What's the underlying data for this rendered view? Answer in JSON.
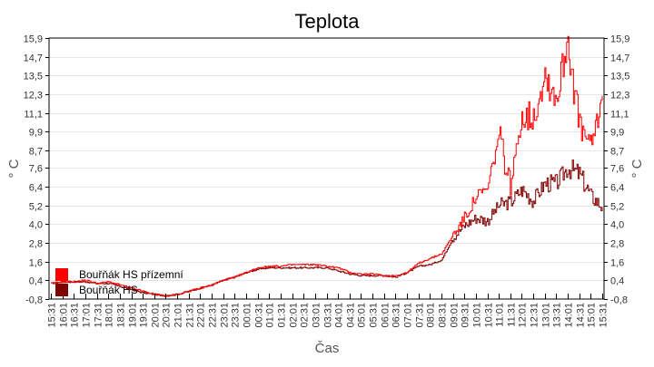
{
  "chart_data": {
    "type": "line",
    "title": "Teplota",
    "xlabel": "Čas",
    "ylabel": "° C",
    "ylabel_right": "° C",
    "ylim": [
      -0.8,
      15.9
    ],
    "yticks": [
      "-0,8",
      "0,4",
      "1,6",
      "2,8",
      "4,0",
      "5,2",
      "6,4",
      "7,6",
      "8,7",
      "9,9",
      "11,1",
      "12,3",
      "13,5",
      "14,7",
      "15,9"
    ],
    "ytick_values": [
      -0.8,
      0.4,
      1.6,
      2.8,
      4.0,
      5.2,
      6.4,
      7.6,
      8.7,
      9.9,
      11.1,
      12.3,
      13.5,
      14.7,
      15.9
    ],
    "grid": "horizontal",
    "legend_position": "lower-left inside",
    "categories": [
      "15:31",
      "16:01",
      "16:31",
      "17:01",
      "17:31",
      "18:01",
      "18:31",
      "19:01",
      "19:31",
      "20:01",
      "20:31",
      "21:01",
      "21:31",
      "22:01",
      "22:31",
      "23:01",
      "23:31",
      "00:01",
      "00:31",
      "01:01",
      "01:31",
      "02:01",
      "02:31",
      "03:01",
      "03:31",
      "04:01",
      "04:31",
      "05:01",
      "05:31",
      "06:01",
      "06:31",
      "07:01",
      "07:31",
      "08:01",
      "08:31",
      "09:01",
      "09:31",
      "10:01",
      "10:31",
      "11:01",
      "11:31",
      "12:01",
      "12:31",
      "13:01",
      "13:31",
      "14:01",
      "14:31",
      "15:01",
      "15:31"
    ],
    "series": [
      {
        "name": "Bouřňák HS přízemní",
        "color": "#ff0000",
        "values": [
          0.2,
          0.3,
          0.3,
          0.4,
          0.2,
          0.3,
          0.1,
          -0.1,
          -0.3,
          -0.5,
          -0.6,
          -0.5,
          -0.3,
          -0.1,
          0.1,
          0.4,
          0.6,
          0.9,
          1.2,
          1.3,
          1.3,
          1.4,
          1.4,
          1.4,
          1.3,
          1.2,
          0.9,
          0.8,
          0.8,
          0.7,
          0.7,
          0.9,
          1.5,
          1.8,
          2.1,
          3.3,
          4.4,
          5.7,
          6.2,
          9.7,
          6.4,
          11.0,
          10.8,
          13.6,
          12.0,
          15.9,
          10.2,
          8.9,
          12.2
        ]
      },
      {
        "name": "Bouřňák HS",
        "color": "#800000",
        "values": [
          0.2,
          0.3,
          0.3,
          0.3,
          0.2,
          0.2,
          0.0,
          -0.2,
          -0.4,
          -0.5,
          -0.6,
          -0.5,
          -0.3,
          -0.1,
          0.1,
          0.4,
          0.6,
          0.9,
          1.1,
          1.2,
          1.2,
          1.2,
          1.2,
          1.2,
          1.2,
          1.0,
          0.8,
          0.7,
          0.7,
          0.7,
          0.6,
          0.9,
          1.3,
          1.4,
          1.7,
          3.1,
          3.9,
          4.4,
          4.2,
          5.2,
          5.4,
          6.2,
          5.5,
          6.6,
          6.6,
          7.6,
          7.2,
          5.8,
          5.1
        ]
      }
    ]
  },
  "legend": {
    "items": [
      {
        "label": "Bouřňák HS přízemní",
        "color": "#ff0000"
      },
      {
        "label": "Bouřňák HS",
        "color": "#800000"
      }
    ]
  }
}
